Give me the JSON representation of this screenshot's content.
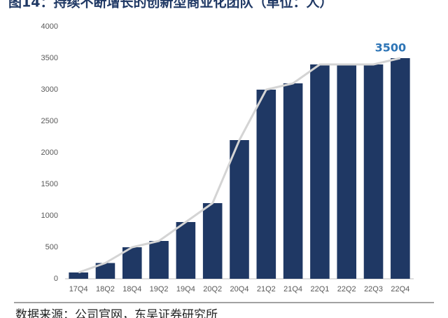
{
  "chart_data": {
    "type": "bar",
    "title": "图14：持续不断增长的创新型商业化团队（单位：人）",
    "source": "数据来源：公司官网，东吴证券研究所",
    "categories": [
      "17Q4",
      "18Q2",
      "18Q4",
      "19Q2",
      "19Q4",
      "20Q2",
      "20Q4",
      "21Q2",
      "21Q4",
      "22Q1",
      "22Q2",
      "22Q3",
      "22Q4"
    ],
    "values": [
      100,
      250,
      500,
      600,
      900,
      1200,
      2200,
      3000,
      3100,
      3400,
      3400,
      3400,
      3500
    ],
    "color": "#1f3864",
    "line_color": "#d4d4d4",
    "label_color": "#2e75b6",
    "ylim": [
      0,
      4000
    ],
    "yticks": [
      0,
      500,
      1000,
      1500,
      2000,
      2500,
      3000,
      3500,
      4000
    ]
  }
}
